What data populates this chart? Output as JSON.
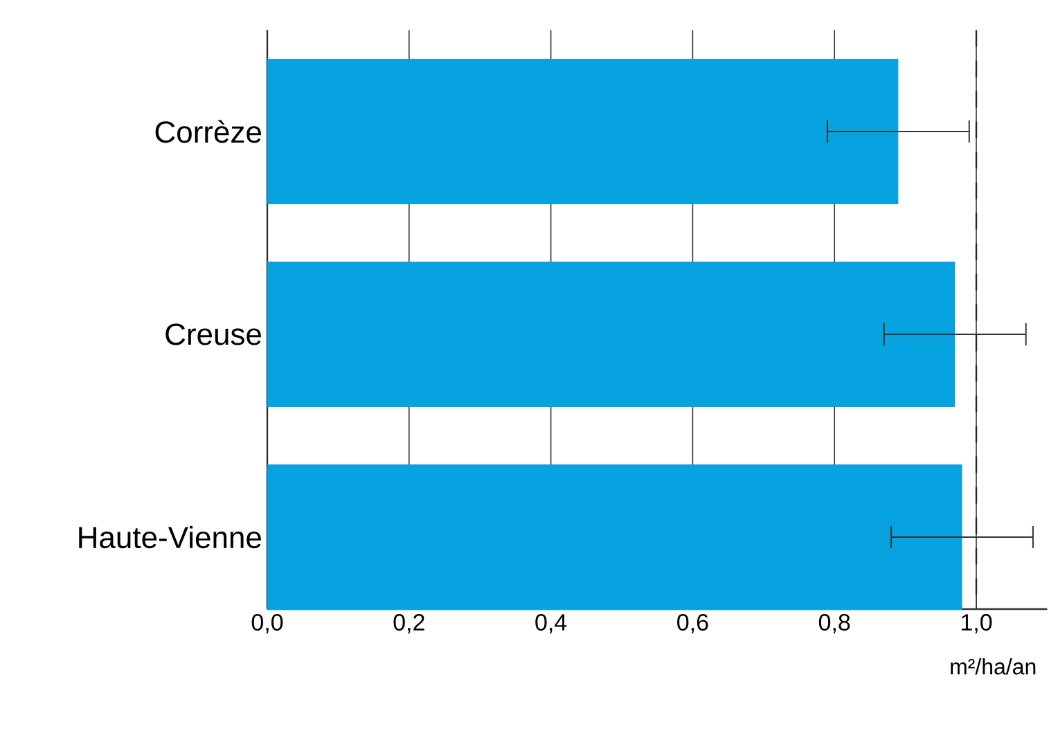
{
  "chart_data": {
    "type": "bar",
    "orientation": "horizontal",
    "categories": [
      "Corrèze",
      "Creuse",
      "Haute-Vienne"
    ],
    "values": [
      0.89,
      0.97,
      0.98
    ],
    "errors": [
      [
        0.79,
        0.99
      ],
      [
        0.87,
        1.07
      ],
      [
        0.88,
        1.08
      ]
    ],
    "color": "#06a3e0",
    "xlabel": "m²/ha/an",
    "xlim": [
      0,
      1.1
    ],
    "xticks": [
      {
        "value": 0,
        "label": "0,0"
      },
      {
        "value": 0.2,
        "label": "0,2"
      },
      {
        "value": 0.4,
        "label": "0,4"
      },
      {
        "value": 0.6,
        "label": "0,6"
      },
      {
        "value": 0.8,
        "label": "0,8"
      },
      {
        "value": 1.0,
        "label": "1,0"
      }
    ],
    "grid": "x",
    "ref_lines": [
      {
        "axis": "x",
        "value": 1.0,
        "line_style": "dashed"
      }
    ]
  }
}
